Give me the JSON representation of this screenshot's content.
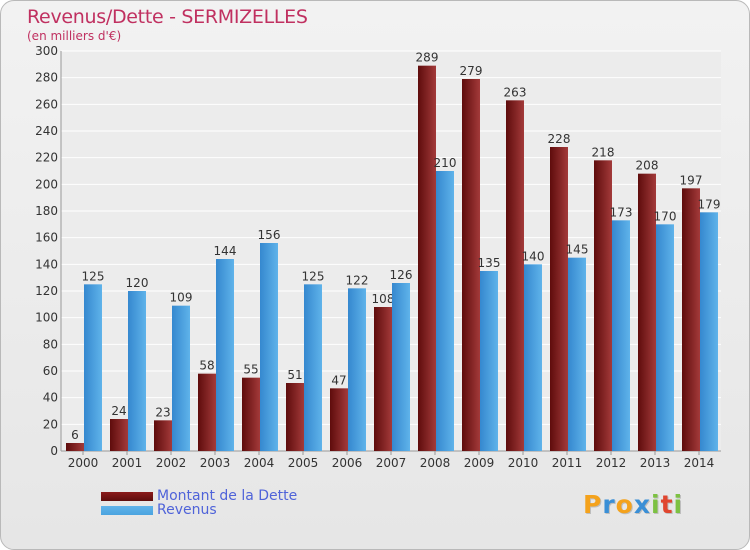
{
  "chart_data": {
    "type": "bar",
    "title": "Revenus/Dette - SERMIZELLES",
    "subtitle": "(en milliers d'€)",
    "categories": [
      "2000",
      "2001",
      "2002",
      "2003",
      "2004",
      "2005",
      "2006",
      "2007",
      "2008",
      "2009",
      "2010",
      "2011",
      "2012",
      "2013",
      "2014"
    ],
    "series": [
      {
        "name": "Montant de la Dette",
        "color": "#8b1a1a",
        "values": [
          6,
          24,
          23,
          58,
          55,
          51,
          47,
          108,
          289,
          279,
          263,
          228,
          218,
          208,
          197
        ]
      },
      {
        "name": "Revenus",
        "color": "#4aa3df",
        "values": [
          125,
          120,
          109,
          144,
          156,
          125,
          122,
          126,
          210,
          135,
          140,
          145,
          173,
          170,
          179
        ]
      }
    ],
    "ylim": [
      0,
      300
    ],
    "yticks": [
      0,
      20,
      40,
      60,
      80,
      100,
      120,
      140,
      160,
      180,
      200,
      220,
      240,
      260,
      280,
      300
    ],
    "grid": true,
    "legend_position": "bottom-left"
  },
  "logo": {
    "letters": [
      "P",
      "r",
      "o",
      "x",
      "i",
      "t",
      "i"
    ],
    "colors": [
      "#f4a21c",
      "#3a8fd6",
      "#f4a21c",
      "#3a8fd6",
      "#7dc142",
      "#e0462f",
      "#7dc142"
    ]
  }
}
